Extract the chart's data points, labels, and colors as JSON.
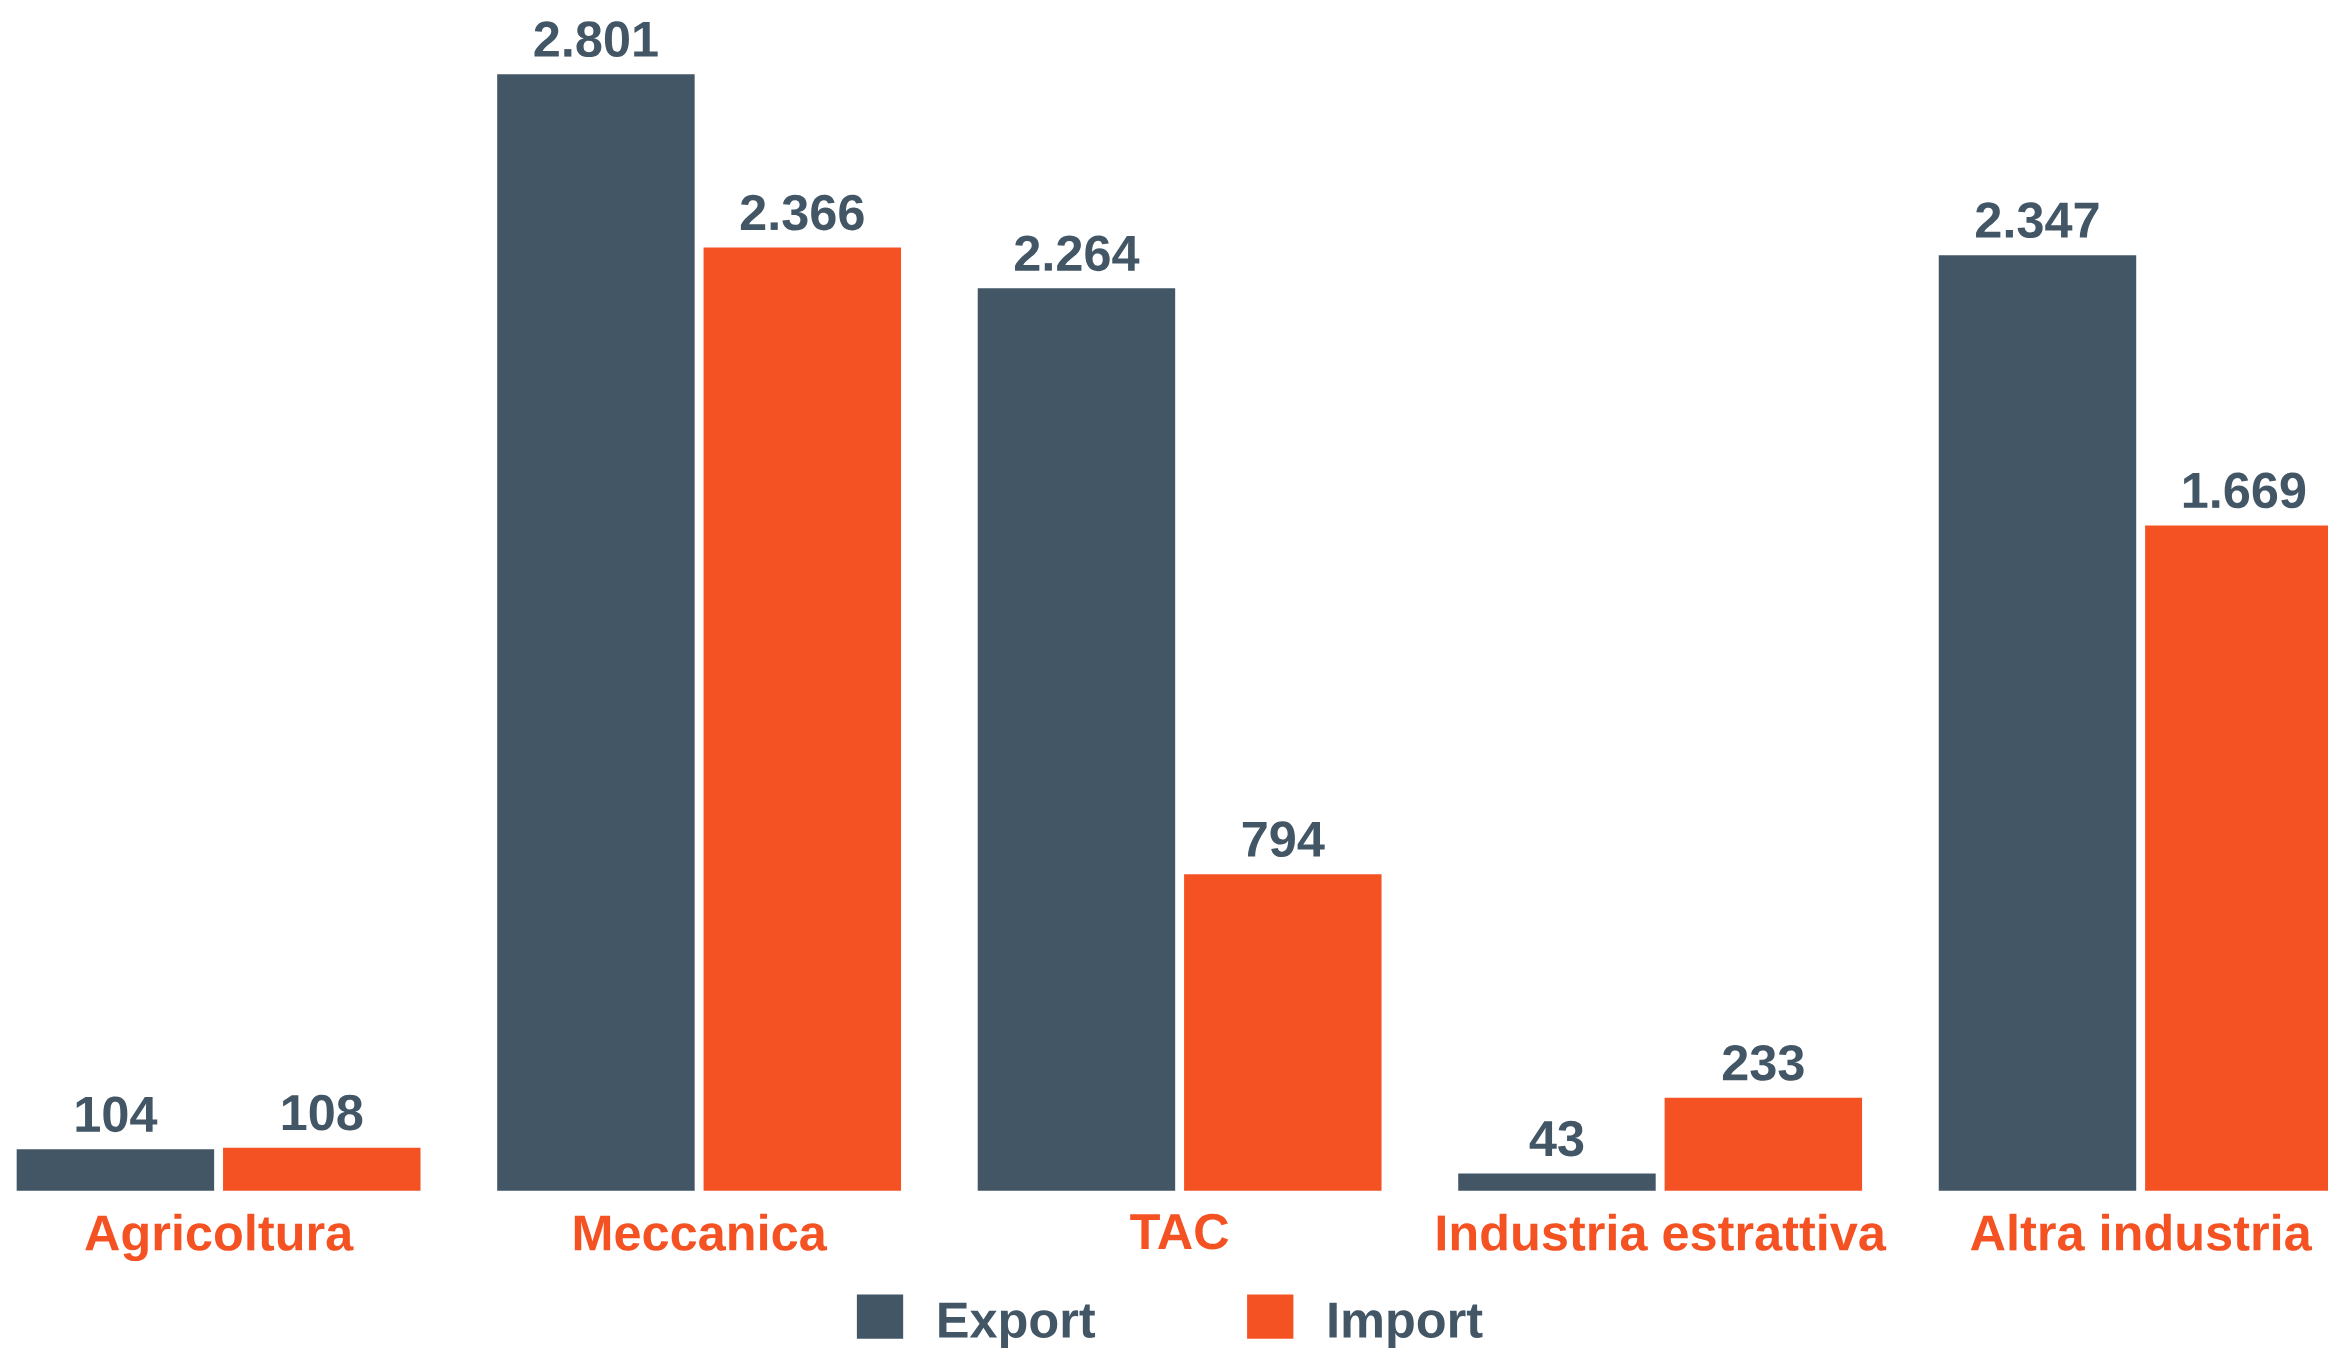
{
  "chart_data": {
    "type": "bar",
    "categories": [
      "Agricoltura",
      "Meccanica",
      "TAC",
      "Industria estrattiva",
      "Altra industria"
    ],
    "series": [
      {
        "name": "Export",
        "color": "#435666",
        "values": [
          104,
          2801,
          2264,
          43,
          2347
        ],
        "value_labels": [
          "104",
          "2.801",
          "2.264",
          "43",
          "2.347"
        ]
      },
      {
        "name": "Import",
        "color": "#f55224",
        "values": [
          108,
          2366,
          794,
          233,
          1669
        ],
        "value_labels": [
          "108",
          "2.366",
          "794",
          "233",
          "1.669"
        ]
      }
    ],
    "legend": "bottom"
  }
}
